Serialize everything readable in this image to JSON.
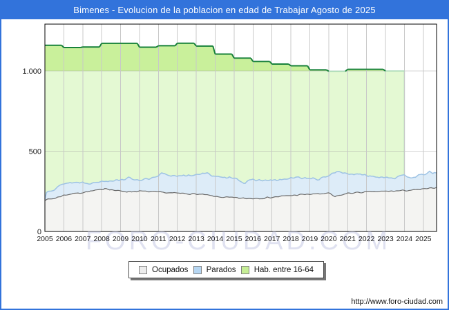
{
  "title": "Bimenes - Evolucion de la poblacion en edad de Trabajar Agosto de 2025",
  "footer_url": "http://www.foro-ciudad.com",
  "watermark": "FORO-CIUDAD.COM",
  "colors": {
    "accent_blue": "#3273db",
    "hab_fill_above_1000": "#c9f09b",
    "hab_fill_below_1000": "#e4f9d3",
    "hab_line": "#17813a",
    "hab_line_faint": "#a7d8b6",
    "parados_fill": "#ddecf8",
    "parados_line": "#9dc2e4",
    "ocupados_fill": "#f4f4f2",
    "ocupados_line": "#6a6a6a",
    "grid_v": "#c8c8c8",
    "grid_h": "#9a9a9a",
    "plot_border": "#000000",
    "axis_text": "#1a1a1a",
    "watermark": "#b9bde0"
  },
  "legend": [
    {
      "label": "Ocupados",
      "swatch_fill": "#ededed"
    },
    {
      "label": "Parados",
      "swatch_fill": "#b6d6f2"
    },
    {
      "label": "Hab. entre 16-64",
      "swatch_fill": "#c6ee96"
    }
  ],
  "y_ticks": [
    {
      "value": 0,
      "label": "0"
    },
    {
      "value": 500,
      "label": "500"
    },
    {
      "value": 1000,
      "label": "1.000"
    }
  ],
  "x_ticks": [
    "2005",
    "2006",
    "2007",
    "2008",
    "2009",
    "2010",
    "2011",
    "2012",
    "2013",
    "2014",
    "2015",
    "2016",
    "2017",
    "2018",
    "2019",
    "2020",
    "2021",
    "2022",
    "2023",
    "2024",
    "2025"
  ],
  "chart_data": {
    "type": "area",
    "title": "Bimenes - Evolucion de la poblacion en edad de Trabajar Agosto de 2025",
    "xlabel": "",
    "ylabel": "",
    "x_range": [
      2005,
      2025.7
    ],
    "ylim": [
      0,
      1292
    ],
    "y_tick_values": [
      0,
      500,
      1000
    ],
    "grid": true,
    "legend_position": "bottom-center",
    "stacking_note": "Parados is drawn stacked on top of Ocupados; Hab. entre 16-64 is a yearly step series behind both and its data ends at Jan 2024 (vertical drop to 0).",
    "series": [
      {
        "name": "Hab. entre 16-64",
        "style": "yearly-step",
        "years": [
          2005,
          2006,
          2007,
          2008,
          2009,
          2010,
          2011,
          2012,
          2013,
          2014,
          2015,
          2016,
          2017,
          2018,
          2019,
          2020,
          2021,
          2022,
          2023
        ],
        "values": [
          1160,
          1146,
          1149,
          1172,
          1172,
          1148,
          1157,
          1173,
          1155,
          1105,
          1080,
          1059,
          1043,
          1032,
          1007,
          998,
          1010,
          1010,
          1000
        ],
        "ends_at": 2024.0
      },
      {
        "name": "Ocupados",
        "style": "monthly",
        "points": [
          [
            2005,
            197
          ],
          [
            2005.5,
            206
          ],
          [
            2006,
            226
          ],
          [
            2006.5,
            236
          ],
          [
            2007,
            243
          ],
          [
            2008,
            261
          ],
          [
            2008.17,
            270
          ],
          [
            2008.6,
            258
          ],
          [
            2009,
            251
          ],
          [
            2009.5,
            248
          ],
          [
            2010,
            251
          ],
          [
            2010.5,
            248
          ],
          [
            2011,
            245
          ],
          [
            2011.5,
            241
          ],
          [
            2012,
            238
          ],
          [
            2012.5,
            236
          ],
          [
            2013,
            233
          ],
          [
            2013.5,
            228
          ],
          [
            2014,
            217
          ],
          [
            2014.5,
            213
          ],
          [
            2015,
            210
          ],
          [
            2015.6,
            205
          ],
          [
            2016,
            206
          ],
          [
            2016.5,
            208
          ],
          [
            2017,
            213
          ],
          [
            2017.5,
            219
          ],
          [
            2018,
            224
          ],
          [
            2018.5,
            229
          ],
          [
            2019,
            232
          ],
          [
            2019.5,
            234
          ],
          [
            2020,
            238
          ],
          [
            2020.33,
            216
          ],
          [
            2020.7,
            228
          ],
          [
            2021,
            238
          ],
          [
            2021.5,
            242
          ],
          [
            2022,
            246
          ],
          [
            2022.5,
            248
          ],
          [
            2023,
            250
          ],
          [
            2023.5,
            252
          ],
          [
            2024,
            255
          ],
          [
            2024.5,
            258
          ],
          [
            2025,
            264
          ],
          [
            2025.4,
            268
          ],
          [
            2025.7,
            276
          ]
        ]
      },
      {
        "name": "Parados (stack top = Ocupados + Parados)",
        "style": "monthly",
        "points": [
          [
            2005,
            202
          ],
          [
            2005.1,
            256
          ],
          [
            2005.5,
            262
          ],
          [
            2006,
            300
          ],
          [
            2006.5,
            305
          ],
          [
            2007,
            307
          ],
          [
            2007.5,
            300
          ],
          [
            2008,
            314
          ],
          [
            2008.5,
            318
          ],
          [
            2009,
            323
          ],
          [
            2009.4,
            332
          ],
          [
            2010,
            321
          ],
          [
            2010.5,
            326
          ],
          [
            2011,
            341
          ],
          [
            2011.15,
            363
          ],
          [
            2011.6,
            348
          ],
          [
            2012,
            350
          ],
          [
            2012.5,
            344
          ],
          [
            2013,
            357
          ],
          [
            2013.5,
            362
          ],
          [
            2014,
            346
          ],
          [
            2014.4,
            331
          ],
          [
            2015,
            339
          ],
          [
            2015.55,
            301
          ],
          [
            2016,
            323
          ],
          [
            2016.5,
            318
          ],
          [
            2017,
            317
          ],
          [
            2017.5,
            322
          ],
          [
            2018,
            331
          ],
          [
            2018.4,
            336
          ],
          [
            2019,
            331
          ],
          [
            2019.5,
            323
          ],
          [
            2020,
            349
          ],
          [
            2020.35,
            373
          ],
          [
            2021,
            361
          ],
          [
            2021.5,
            355
          ],
          [
            2022,
            349
          ],
          [
            2022.5,
            342
          ],
          [
            2023,
            339
          ],
          [
            2023.5,
            334
          ],
          [
            2024,
            347
          ],
          [
            2024.4,
            338
          ],
          [
            2025,
            353
          ],
          [
            2025.3,
            371
          ],
          [
            2025.5,
            358
          ],
          [
            2025.7,
            369
          ]
        ]
      }
    ]
  }
}
